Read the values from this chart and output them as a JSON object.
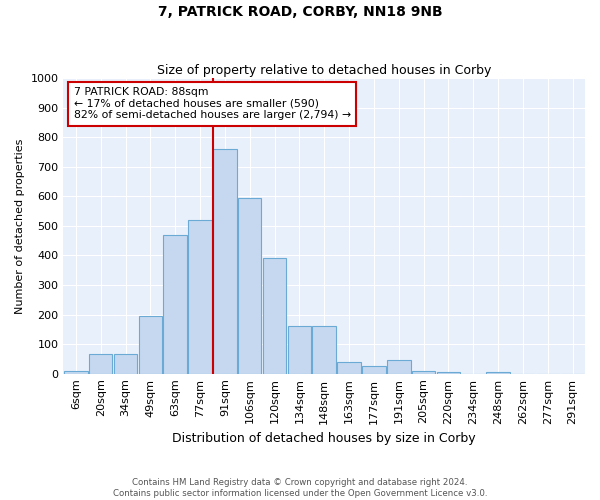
{
  "title": "7, PATRICK ROAD, CORBY, NN18 9NB",
  "subtitle": "Size of property relative to detached houses in Corby",
  "xlabel": "Distribution of detached houses by size in Corby",
  "ylabel": "Number of detached properties",
  "bin_labels": [
    "6sqm",
    "20sqm",
    "34sqm",
    "49sqm",
    "63sqm",
    "77sqm",
    "91sqm",
    "106sqm",
    "120sqm",
    "134sqm",
    "148sqm",
    "163sqm",
    "177sqm",
    "191sqm",
    "205sqm",
    "220sqm",
    "234sqm",
    "248sqm",
    "262sqm",
    "277sqm",
    "291sqm"
  ],
  "bar_values": [
    10,
    65,
    65,
    195,
    470,
    520,
    760,
    595,
    390,
    160,
    160,
    40,
    25,
    45,
    10,
    5,
    0,
    5,
    0,
    0,
    0
  ],
  "bar_color": "#c5d8f0",
  "bar_edge_color": "#6aaad4",
  "vline_index": 6,
  "annotation_text": "7 PATRICK ROAD: 88sqm\n← 17% of detached houses are smaller (590)\n82% of semi-detached houses are larger (2,794) →",
  "annotation_box_color": "#ffffff",
  "annotation_box_edge_color": "#cc0000",
  "vline_color": "#cc0000",
  "ylim": [
    0,
    1000
  ],
  "yticks": [
    0,
    100,
    200,
    300,
    400,
    500,
    600,
    700,
    800,
    900,
    1000
  ],
  "footer_line1": "Contains HM Land Registry data © Crown copyright and database right 2024.",
  "footer_line2": "Contains public sector information licensed under the Open Government Licence v3.0.",
  "plot_bg_color": "#e8f0fb"
}
